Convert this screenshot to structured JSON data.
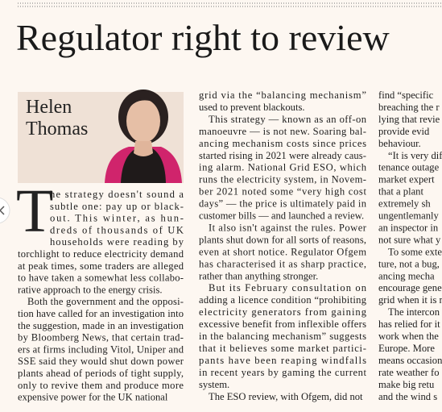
{
  "headline": "Regulator right to review",
  "byline": {
    "first": "Helen",
    "last": "Thomas"
  },
  "drop_cap": "T",
  "columns": [
    {
      "paragraphs": [
        [
          "he strategy doesn't sound a",
          "subtle one: pay up or black-",
          "out. This winter, as hun-",
          "dreds of thousands of UK",
          "households were reading by",
          "torchlight to reduce electricity demand",
          "at peak times, some traders are alleged",
          "to have taken a somewhat less collabo-",
          "rative approach to the energy crisis."
        ],
        [
          "Both the government and the opposi-",
          "tion have called for an investigation into",
          "the suggestion, made in an investigation",
          "by Bloomberg News, that certain trad-",
          "ers at firms including Vitol, Uniper and",
          "SSE said they would shut down power",
          "plants ahead of periods of tight supply,",
          "only to revive them and produce more",
          "expensive power for the UK national"
        ]
      ]
    },
    {
      "paragraphs": [
        [
          "grid via the “balancing mechanism”",
          "used to prevent blackouts."
        ],
        [
          "This strategy — known as an off-on",
          "manoeuvre — is not new. Soaring bal-",
          "ancing mechanism costs since prices",
          "started rising in 2021 were already caus-",
          "ing alarm. National Grid ESO, which",
          "runs the electricity system, in Novem-",
          "ber 2021 noted some “very high cost",
          "days” — the price is ultimately paid in",
          "customer bills — and launched a review."
        ],
        [
          "It also isn't against the rules. Power",
          "plants shut down for all sorts of reasons,",
          "even at short notice. Regulator Ofgem",
          "has characterised it as sharp practice,",
          "rather than anything stronger."
        ],
        [
          "But its February consultation on",
          "adding a licence condition “prohibiting",
          "electricity generators from gaining",
          "excessive benefit from inflexible offers",
          "in the balancing mechanism” suggests",
          "that it believes some market partici-",
          "pants have been reaping windfalls",
          "in recent years by gaming the current",
          "system."
        ],
        [
          "The ESO review, with Ofgem, did not"
        ]
      ]
    },
    {
      "paragraphs": [
        [
          "find “specific",
          "breaching the r",
          "lying that revie",
          "provide evid",
          "behaviour."
        ],
        [
          "“It is very dif",
          "tenance outage",
          "market expert",
          "that a plant",
          "extremely sh",
          "ungentlemanly",
          "an inspector in",
          "not sure what y"
        ],
        [
          "To some exte",
          "ture, not a bug,",
          "ancing mecha",
          "encourage gene",
          "grid when it is n"
        ],
        [
          "The intercon",
          "has relied for it",
          "work when the",
          "Europe. More",
          "means occasion",
          "rate weather fo",
          "make big retu",
          "and the wind s"
        ]
      ]
    }
  ]
}
